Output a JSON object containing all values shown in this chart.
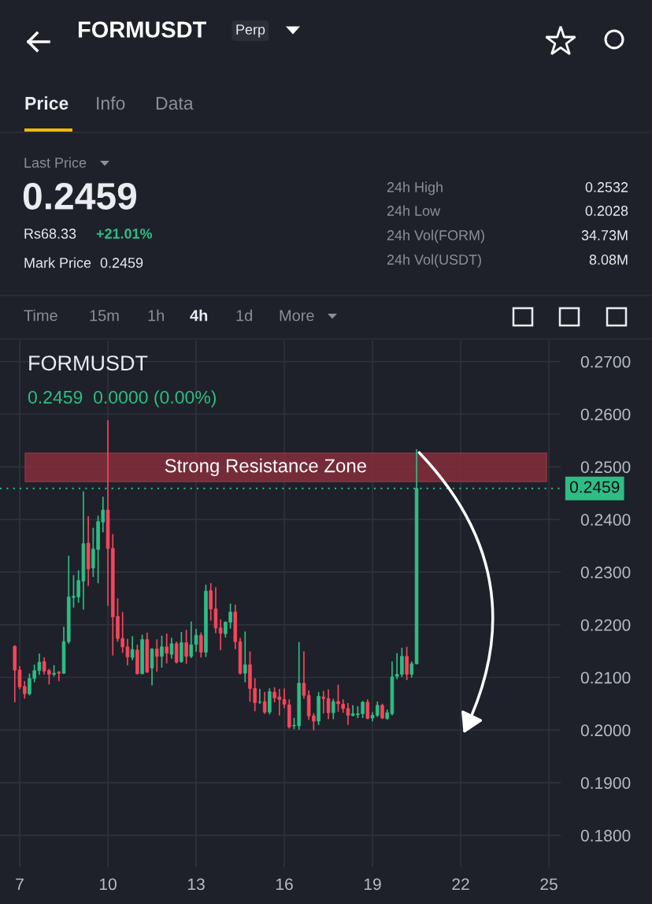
{
  "chart_data": {
    "type": "candlestick",
    "title": "FORMUSDT",
    "annotations": [
      "Perp",
      "Price",
      "Info",
      "Data",
      "Last Price",
      "0.2459",
      "Rs68.33",
      "+21.01%",
      "Mark Price",
      "0.2459",
      "24h High",
      "0.2532",
      "24h Low",
      "0.2028",
      "24h Vol(FORM)",
      "34.73M",
      "24h Vol(USDT)",
      "8.08M",
      "Time",
      "15m",
      "1h",
      "4h",
      "1d",
      "More",
      "FORMUSDT",
      "0.2459  0.0000 (0.00%)"
    ],
    "x": [
      6.833,
      7,
      7.167,
      7.333,
      7.5,
      7.667,
      7.833,
      8,
      8.167,
      8.333,
      8.5,
      8.667,
      8.833,
      9,
      9.167,
      9.333,
      9.5,
      9.667,
      9.833,
      10,
      10.167,
      10.333,
      10.5,
      10.667,
      10.833,
      11,
      11.167,
      11.333,
      11.5,
      11.667,
      11.833,
      12,
      12.167,
      12.333,
      12.5,
      12.667,
      12.833,
      13,
      13.167,
      13.333,
      13.5,
      13.667,
      13.833,
      14,
      14.167,
      14.333,
      14.5,
      14.667,
      14.833,
      15,
      15.167,
      15.333,
      15.5,
      15.667,
      15.833,
      16,
      16.167,
      16.333,
      16.5,
      16.667,
      16.833,
      17,
      17.167,
      17.333,
      17.5,
      17.667,
      17.833,
      18,
      18.167,
      18.333,
      18.5,
      18.667,
      18.833,
      19,
      19.167,
      19.333,
      19.5,
      19.667,
      19.833,
      20,
      20.167,
      20.333,
      20.5
    ],
    "ohlc": [
      [
        0.2159,
        0.216,
        0.2054,
        0.2114
      ],
      [
        0.2114,
        0.212,
        0.2079,
        0.2082
      ],
      [
        0.2083,
        0.2092,
        0.2061,
        0.2069
      ],
      [
        0.2069,
        0.2106,
        0.2067,
        0.2098
      ],
      [
        0.2098,
        0.2123,
        0.2092,
        0.2113
      ],
      [
        0.2113,
        0.2144,
        0.2106,
        0.2129
      ],
      [
        0.213,
        0.2137,
        0.2107,
        0.2112
      ],
      [
        0.2113,
        0.2115,
        0.2088,
        0.2106
      ],
      [
        0.2106,
        0.2122,
        0.2103,
        0.2108
      ],
      [
        0.211,
        0.2111,
        0.2094,
        0.2108
      ],
      [
        0.2108,
        0.2195,
        0.2108,
        0.2168
      ],
      [
        0.2168,
        0.233,
        0.2165,
        0.2253
      ],
      [
        0.2252,
        0.2293,
        0.2234,
        0.2254
      ],
      [
        0.2253,
        0.2302,
        0.2243,
        0.2284
      ],
      [
        0.2283,
        0.2452,
        0.223,
        0.2354
      ],
      [
        0.2355,
        0.2405,
        0.2275,
        0.2306
      ],
      [
        0.2308,
        0.2383,
        0.2292,
        0.2344
      ],
      [
        0.2343,
        0.2406,
        0.228,
        0.2396
      ],
      [
        0.2395,
        0.2442,
        0.2377,
        0.2418
      ],
      [
        0.2418,
        0.2587,
        0.2237,
        0.2345
      ],
      [
        0.2345,
        0.2371,
        0.2143,
        0.2215
      ],
      [
        0.2216,
        0.2249,
        0.2169,
        0.2174
      ],
      [
        0.2174,
        0.2223,
        0.2148,
        0.2158
      ],
      [
        0.2158,
        0.2172,
        0.2124,
        0.2139
      ],
      [
        0.2138,
        0.2177,
        0.2134,
        0.2153
      ],
      [
        0.2152,
        0.2161,
        0.2107,
        0.2107
      ],
      [
        0.2107,
        0.218,
        0.2107,
        0.2172
      ],
      [
        0.2172,
        0.2184,
        0.211,
        0.211
      ],
      [
        0.2118,
        0.2154,
        0.2086,
        0.2154
      ],
      [
        0.2154,
        0.2171,
        0.2112,
        0.214
      ],
      [
        0.214,
        0.2178,
        0.212,
        0.2158
      ],
      [
        0.2158,
        0.2182,
        0.2128,
        0.2146
      ],
      [
        0.2144,
        0.2174,
        0.2137,
        0.2164
      ],
      [
        0.2164,
        0.2167,
        0.2128,
        0.2129
      ],
      [
        0.213,
        0.2185,
        0.2129,
        0.2166
      ],
      [
        0.2166,
        0.2189,
        0.2127,
        0.214
      ],
      [
        0.214,
        0.2205,
        0.2138,
        0.2162
      ],
      [
        0.2163,
        0.2191,
        0.215,
        0.218
      ],
      [
        0.218,
        0.2184,
        0.2139,
        0.2148
      ],
      [
        0.2148,
        0.2275,
        0.214,
        0.2264
      ],
      [
        0.2265,
        0.2278,
        0.2209,
        0.223
      ],
      [
        0.223,
        0.227,
        0.2185,
        0.2194
      ],
      [
        0.2194,
        0.2209,
        0.2153,
        0.2184
      ],
      [
        0.2183,
        0.2205,
        0.2177,
        0.2205
      ],
      [
        0.2205,
        0.2239,
        0.2194,
        0.2224
      ],
      [
        0.2224,
        0.2237,
        0.2155,
        0.2168
      ],
      [
        0.2168,
        0.2174,
        0.2107,
        0.2108
      ],
      [
        0.2108,
        0.2186,
        0.2092,
        0.2124
      ],
      [
        0.2124,
        0.2148,
        0.2055,
        0.2079
      ],
      [
        0.2079,
        0.2097,
        0.2037,
        0.2052
      ],
      [
        0.2053,
        0.2077,
        0.2051,
        0.2053
      ],
      [
        0.2054,
        0.2071,
        0.2032,
        0.2034
      ],
      [
        0.2034,
        0.2078,
        0.2031,
        0.2073
      ],
      [
        0.2072,
        0.208,
        0.2054,
        0.2061
      ],
      [
        0.2063,
        0.2077,
        0.2029,
        0.2058
      ],
      [
        0.2058,
        0.2078,
        0.2043,
        0.2049
      ],
      [
        0.2048,
        0.2057,
        0.2004,
        0.2006
      ],
      [
        0.2008,
        0.2022,
        0.2003,
        0.2009
      ],
      [
        0.2008,
        0.2166,
        0.2002,
        0.2089
      ],
      [
        0.2089,
        0.2148,
        0.2061,
        0.2066
      ],
      [
        0.2066,
        0.2074,
        0.2021,
        0.2027
      ],
      [
        0.2027,
        0.2031,
        0.2001,
        0.2017
      ],
      [
        0.2017,
        0.2071,
        0.2011,
        0.2064
      ],
      [
        0.2063,
        0.2073,
        0.2033,
        0.206
      ],
      [
        0.206,
        0.2076,
        0.2022,
        0.2033
      ],
      [
        0.2033,
        0.2058,
        0.2022,
        0.2054
      ],
      [
        0.2054,
        0.2085,
        0.2036,
        0.205
      ],
      [
        0.2049,
        0.2057,
        0.2034,
        0.2041
      ],
      [
        0.2041,
        0.205,
        0.2011,
        0.2028
      ],
      [
        0.2028,
        0.2046,
        0.2027,
        0.2031
      ],
      [
        0.2029,
        0.2044,
        0.2024,
        0.2031
      ],
      [
        0.2031,
        0.2054,
        0.2024,
        0.2053
      ],
      [
        0.2053,
        0.2057,
        0.2022,
        0.2022
      ],
      [
        0.2023,
        0.2033,
        0.2018,
        0.2028
      ],
      [
        0.2028,
        0.2053,
        0.2026,
        0.2047
      ],
      [
        0.2047,
        0.2049,
        0.2022,
        0.2023
      ],
      [
        0.2022,
        0.2038,
        0.2021,
        0.2033
      ],
      [
        0.2031,
        0.2129,
        0.2029,
        0.2101
      ],
      [
        0.2102,
        0.2145,
        0.2098,
        0.2106
      ],
      [
        0.2106,
        0.2155,
        0.2102,
        0.214
      ],
      [
        0.214,
        0.2157,
        0.2096,
        0.2106
      ],
      [
        0.2106,
        0.2129,
        0.2101,
        0.2126
      ],
      [
        0.2126,
        0.2532,
        0.2126,
        0.2459
      ]
    ],
    "colors": [
      "#f6465d",
      "#f6465d",
      "#f6465d",
      "#2ebd85",
      "#2ebd85",
      "#2ebd85",
      "#f6465d",
      "#f6465d",
      "#2ebd85",
      "#f6465d",
      "#2ebd85",
      "#2ebd85",
      "#2ebd85",
      "#2ebd85",
      "#2ebd85",
      "#f6465d",
      "#2ebd85",
      "#2ebd85",
      "#2ebd85",
      "#f6465d",
      "#f6465d",
      "#f6465d",
      "#f6465d",
      "#f6465d",
      "#2ebd85",
      "#f6465d",
      "#2ebd85",
      "#f6465d",
      "#2ebd85",
      "#f6465d",
      "#2ebd85",
      "#f6465d",
      "#2ebd85",
      "#f6465d",
      "#2ebd85",
      "#f6465d",
      "#2ebd85",
      "#2ebd85",
      "#f6465d",
      "#2ebd85",
      "#f6465d",
      "#f6465d",
      "#f6465d",
      "#2ebd85",
      "#2ebd85",
      "#f6465d",
      "#f6465d",
      "#2ebd85",
      "#f6465d",
      "#f6465d",
      "#2ebd85",
      "#f6465d",
      "#2ebd85",
      "#f6465d",
      "#f6465d",
      "#f6465d",
      "#f6465d",
      "#2ebd85",
      "#2ebd85",
      "#f6465d",
      "#f6465d",
      "#f6465d",
      "#2ebd85",
      "#f6465d",
      "#f6465d",
      "#2ebd85",
      "#f6465d",
      "#f6465d",
      "#f6465d",
      "#2ebd85",
      "#2ebd85",
      "#2ebd85",
      "#f6465d",
      "#2ebd85",
      "#2ebd85",
      "#f6465d",
      "#2ebd85",
      "#2ebd85",
      "#2ebd85",
      "#2ebd85",
      "#f6465d",
      "#2ebd85",
      "#2ebd85"
    ],
    "xlim": [
      6.33,
      25.4
    ],
    "xticks": [
      7,
      10,
      13,
      16,
      19,
      22,
      25
    ],
    "ylim": [
      0.174,
      0.274
    ],
    "yticks": [
      {
        "value": 0.18,
        "label": "0.1800"
      },
      {
        "value": 0.19,
        "label": "0.1900"
      },
      {
        "value": 0.2,
        "label": "0.2000"
      },
      {
        "value": 0.21,
        "label": "0.2100"
      },
      {
        "value": 0.22,
        "label": "0.2200"
      },
      {
        "value": 0.23,
        "label": "0.2300"
      },
      {
        "value": 0.24,
        "label": "0.2400"
      },
      {
        "value": 0.25,
        "label": "0.2500"
      },
      {
        "value": 0.26,
        "label": "0.2600"
      },
      {
        "value": 0.27,
        "label": "0.2700"
      }
    ],
    "ref_lines": [
      {
        "axis": "y",
        "value": 0.2459,
        "label": "0.2459",
        "color": "#2ebd85",
        "line_style": "dotted"
      }
    ],
    "bands": [
      {
        "axis": "y",
        "from": 0.2472,
        "to": 0.2526,
        "label": "Strong Resistance Zone",
        "color": "#8b2f3c"
      }
    ],
    "grid": true
  }
}
